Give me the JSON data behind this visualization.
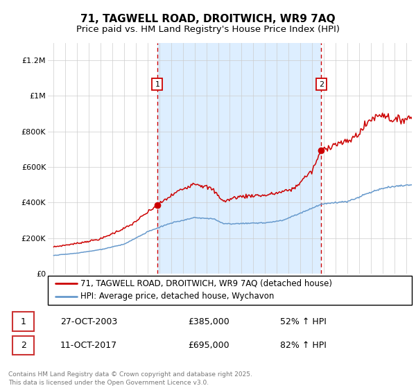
{
  "title": "71, TAGWELL ROAD, DROITWICH, WR9 7AQ",
  "subtitle": "Price paid vs. HM Land Registry's House Price Index (HPI)",
  "ylabel_ticks": [
    "£0",
    "£200K",
    "£400K",
    "£600K",
    "£800K",
    "£1M",
    "£1.2M"
  ],
  "ytick_vals": [
    0,
    200000,
    400000,
    600000,
    800000,
    1000000,
    1200000
  ],
  "ylim": [
    0,
    1300000
  ],
  "xlim_start": 1994.5,
  "xlim_end": 2025.5,
  "background_color": "#ffffff",
  "highlight_color": "#ddeeff",
  "line1_color": "#cc0000",
  "line2_color": "#6699cc",
  "dashed_color": "#cc0000",
  "purchase1_x": 2003.82,
  "purchase1_y": 385000,
  "purchase2_x": 2017.78,
  "purchase2_y": 695000,
  "legend_label1": "71, TAGWELL ROAD, DROITWICH, WR9 7AQ (detached house)",
  "legend_label2": "HPI: Average price, detached house, Wychavon",
  "transaction1_date": "27-OCT-2003",
  "transaction1_price": "£385,000",
  "transaction1_hpi": "52% ↑ HPI",
  "transaction2_date": "11-OCT-2017",
  "transaction2_price": "£695,000",
  "transaction2_hpi": "82% ↑ HPI",
  "footnote": "Contains HM Land Registry data © Crown copyright and database right 2025.\nThis data is licensed under the Open Government Licence v3.0.",
  "title_fontsize": 11,
  "subtitle_fontsize": 9.5,
  "tick_fontsize": 8,
  "legend_fontsize": 8.5
}
